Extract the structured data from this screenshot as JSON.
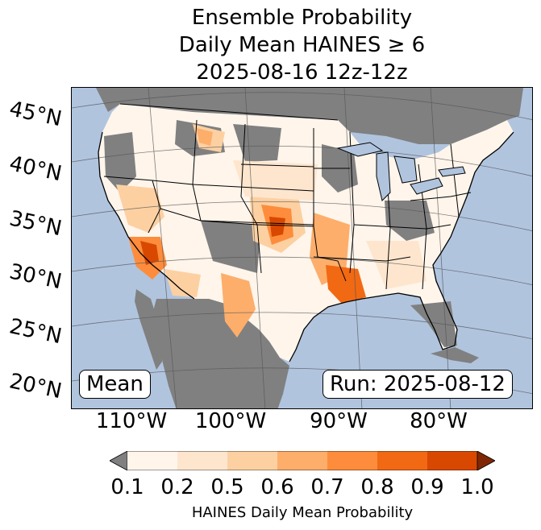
{
  "title": {
    "line1": "Ensemble Probability",
    "line2": "Daily Mean HAINES ≥ 6",
    "line3": "2025-08-16 12z-12z"
  },
  "map": {
    "lat_labels": [
      "45°N",
      "40°N",
      "35°N",
      "30°N",
      "25°N",
      "20°N"
    ],
    "lon_labels": [
      "110°W",
      "100°W",
      "90°W",
      "80°W"
    ],
    "stat_label": "Mean",
    "run_label": "Run: 2025-08-12",
    "colors": {
      "ocean": "#b0c4de",
      "lakes": "#b0c4de",
      "missing": "#808080",
      "low": "#fff5eb"
    }
  },
  "colorbar": {
    "label": "HAINES Daily Mean Probability",
    "ticks": [
      "0.1",
      "0.2",
      "0.5",
      "0.6",
      "0.7",
      "0.8",
      "0.9",
      "1.0"
    ],
    "under_color": "#808080",
    "over_color": "#7f2704",
    "bin_colors": [
      "#fff5eb",
      "#fee6ce",
      "#fdd0a2",
      "#fdae6b",
      "#fd8d3c",
      "#f16913",
      "#d94801"
    ]
  }
}
